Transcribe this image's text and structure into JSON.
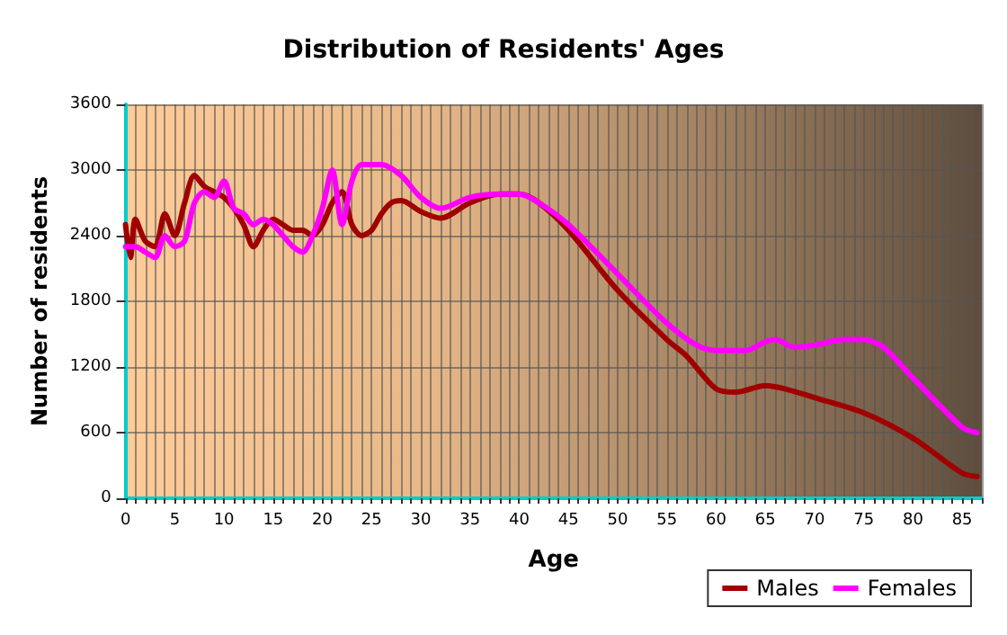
{
  "chart_data": {
    "type": "line",
    "title": "Distribution of Residents' Ages",
    "xlabel": "Age",
    "ylabel": "Number of residents",
    "xlim": [
      0,
      87
    ],
    "xticks": [
      0,
      5,
      10,
      15,
      20,
      25,
      30,
      35,
      40,
      45,
      50,
      55,
      60,
      65,
      70,
      75,
      80,
      85
    ],
    "ylim": [
      0,
      3600
    ],
    "yticks": [
      0,
      600,
      1200,
      1800,
      2400,
      3000,
      3600
    ],
    "grid": true,
    "legend": "bottom right",
    "marker": "none",
    "line_style": "solid",
    "series": [
      {
        "name": "Males",
        "color": "#a00000",
        "x": [
          0,
          0.5,
          1,
          2,
          3,
          4,
          5,
          6,
          7,
          8,
          9,
          10,
          11,
          12,
          13,
          14,
          15,
          16,
          17,
          18,
          19,
          20,
          21,
          22,
          23,
          24,
          25,
          26,
          27,
          28,
          30,
          32,
          35,
          38,
          40,
          42,
          45,
          50,
          55,
          57,
          60,
          62,
          65,
          67,
          70,
          75,
          80,
          85,
          86.5
        ],
        "values": [
          2500,
          2200,
          2550,
          2350,
          2300,
          2600,
          2400,
          2700,
          2950,
          2850,
          2800,
          2750,
          2650,
          2500,
          2300,
          2450,
          2550,
          2500,
          2450,
          2450,
          2400,
          2500,
          2700,
          2800,
          2500,
          2400,
          2450,
          2600,
          2700,
          2720,
          2620,
          2560,
          2700,
          2780,
          2780,
          2700,
          2450,
          1900,
          1450,
          1300,
          1000,
          970,
          1030,
          1000,
          920,
          780,
          550,
          230,
          200
        ]
      },
      {
        "name": "Females",
        "color": "#ff00ff",
        "x": [
          0,
          1,
          2,
          3,
          4,
          5,
          6,
          7,
          8,
          9,
          10,
          11,
          12,
          13,
          14,
          15,
          16,
          17,
          18,
          19,
          20,
          21,
          22,
          23,
          24,
          26,
          28,
          30,
          32,
          35,
          38,
          40,
          42,
          45,
          50,
          55,
          58,
          60,
          63,
          65,
          66,
          68,
          70,
          73,
          75,
          77,
          80,
          85,
          86.5
        ],
        "values": [
          2300,
          2300,
          2250,
          2200,
          2400,
          2300,
          2350,
          2700,
          2800,
          2750,
          2900,
          2650,
          2600,
          2500,
          2550,
          2500,
          2400,
          2300,
          2250,
          2400,
          2650,
          3000,
          2500,
          2900,
          3050,
          3050,
          2950,
          2750,
          2650,
          2750,
          2780,
          2780,
          2700,
          2500,
          2050,
          1600,
          1400,
          1350,
          1350,
          1430,
          1450,
          1380,
          1400,
          1450,
          1450,
          1380,
          1100,
          650,
          600
        ]
      }
    ]
  }
}
